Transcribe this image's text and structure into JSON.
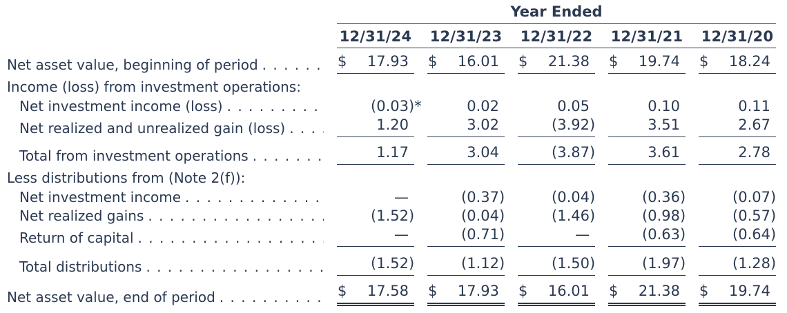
{
  "ink_color": "#2b3a52",
  "table": {
    "title": "Year Ended",
    "columns": [
      "12/31/24",
      "12/31/23",
      "12/31/22",
      "12/31/21",
      "12/31/20"
    ],
    "leader_dots": ". . . . . . . . . . . . . . . . . . . . . . . . . . . . . . . . . . . . . . . .",
    "currency_symbol": "$",
    "footnote_marker": "*",
    "rows": [
      {
        "type": "data",
        "label": "Net asset value, beginning of period",
        "indent": 0,
        "dollar": true,
        "values": [
          "17.93",
          "16.01",
          "21.38",
          "19.74",
          "18.24"
        ],
        "rule": "single",
        "spacing": "md"
      },
      {
        "type": "section",
        "label": "Income (loss) from investment operations:",
        "spacing": "md"
      },
      {
        "type": "data",
        "label": "Net investment income (loss)",
        "indent": 1,
        "values": [
          "(0.03)*",
          "0.02",
          "0.05",
          "0.10",
          "0.11"
        ],
        "rule": "none",
        "spacing": "sm"
      },
      {
        "type": "data",
        "label": "Net realized and unrealized gain (loss)",
        "indent": 1,
        "values": [
          "1.20",
          "3.02",
          "(3.92)",
          "3.51",
          "2.67"
        ],
        "rule": "single",
        "spacing": "xs"
      },
      {
        "type": "data",
        "label": "Total from investment operations",
        "indent": 1,
        "values": [
          "1.17",
          "3.04",
          "(3.87)",
          "3.61",
          "2.78"
        ],
        "rule": "single",
        "spacing": "lg"
      },
      {
        "type": "section",
        "label": "Less distributions from (Note 2(f)):",
        "spacing": "md"
      },
      {
        "type": "data",
        "label": "Net investment income",
        "indent": 1,
        "values": [
          "—",
          "(0.37)",
          "(0.04)",
          "(0.36)",
          "(0.07)"
        ],
        "rule": "none",
        "spacing": "sm"
      },
      {
        "type": "data",
        "label": "Net realized gains",
        "indent": 1,
        "values": [
          "(1.52)",
          "(0.04)",
          "(1.46)",
          "(0.98)",
          "(0.57)"
        ],
        "rule": "none",
        "spacing": "xs"
      },
      {
        "type": "data",
        "label": "Return of capital",
        "indent": 1,
        "values": [
          "—",
          "(0.71)",
          "—",
          "(0.63)",
          "(0.64)"
        ],
        "rule": "single",
        "spacing": "xs"
      },
      {
        "type": "data",
        "label": "Total distributions",
        "indent": 1,
        "values": [
          "(1.52)",
          "(1.12)",
          "(1.50)",
          "(1.97)",
          "(1.28)"
        ],
        "rule": "single",
        "spacing": "xl"
      },
      {
        "type": "data",
        "label": "Net asset value, end of period",
        "indent": 0,
        "dollar": true,
        "values": [
          "17.58",
          "17.93",
          "16.01",
          "21.38",
          "19.74"
        ],
        "rule": "double",
        "spacing": "lg"
      }
    ]
  }
}
